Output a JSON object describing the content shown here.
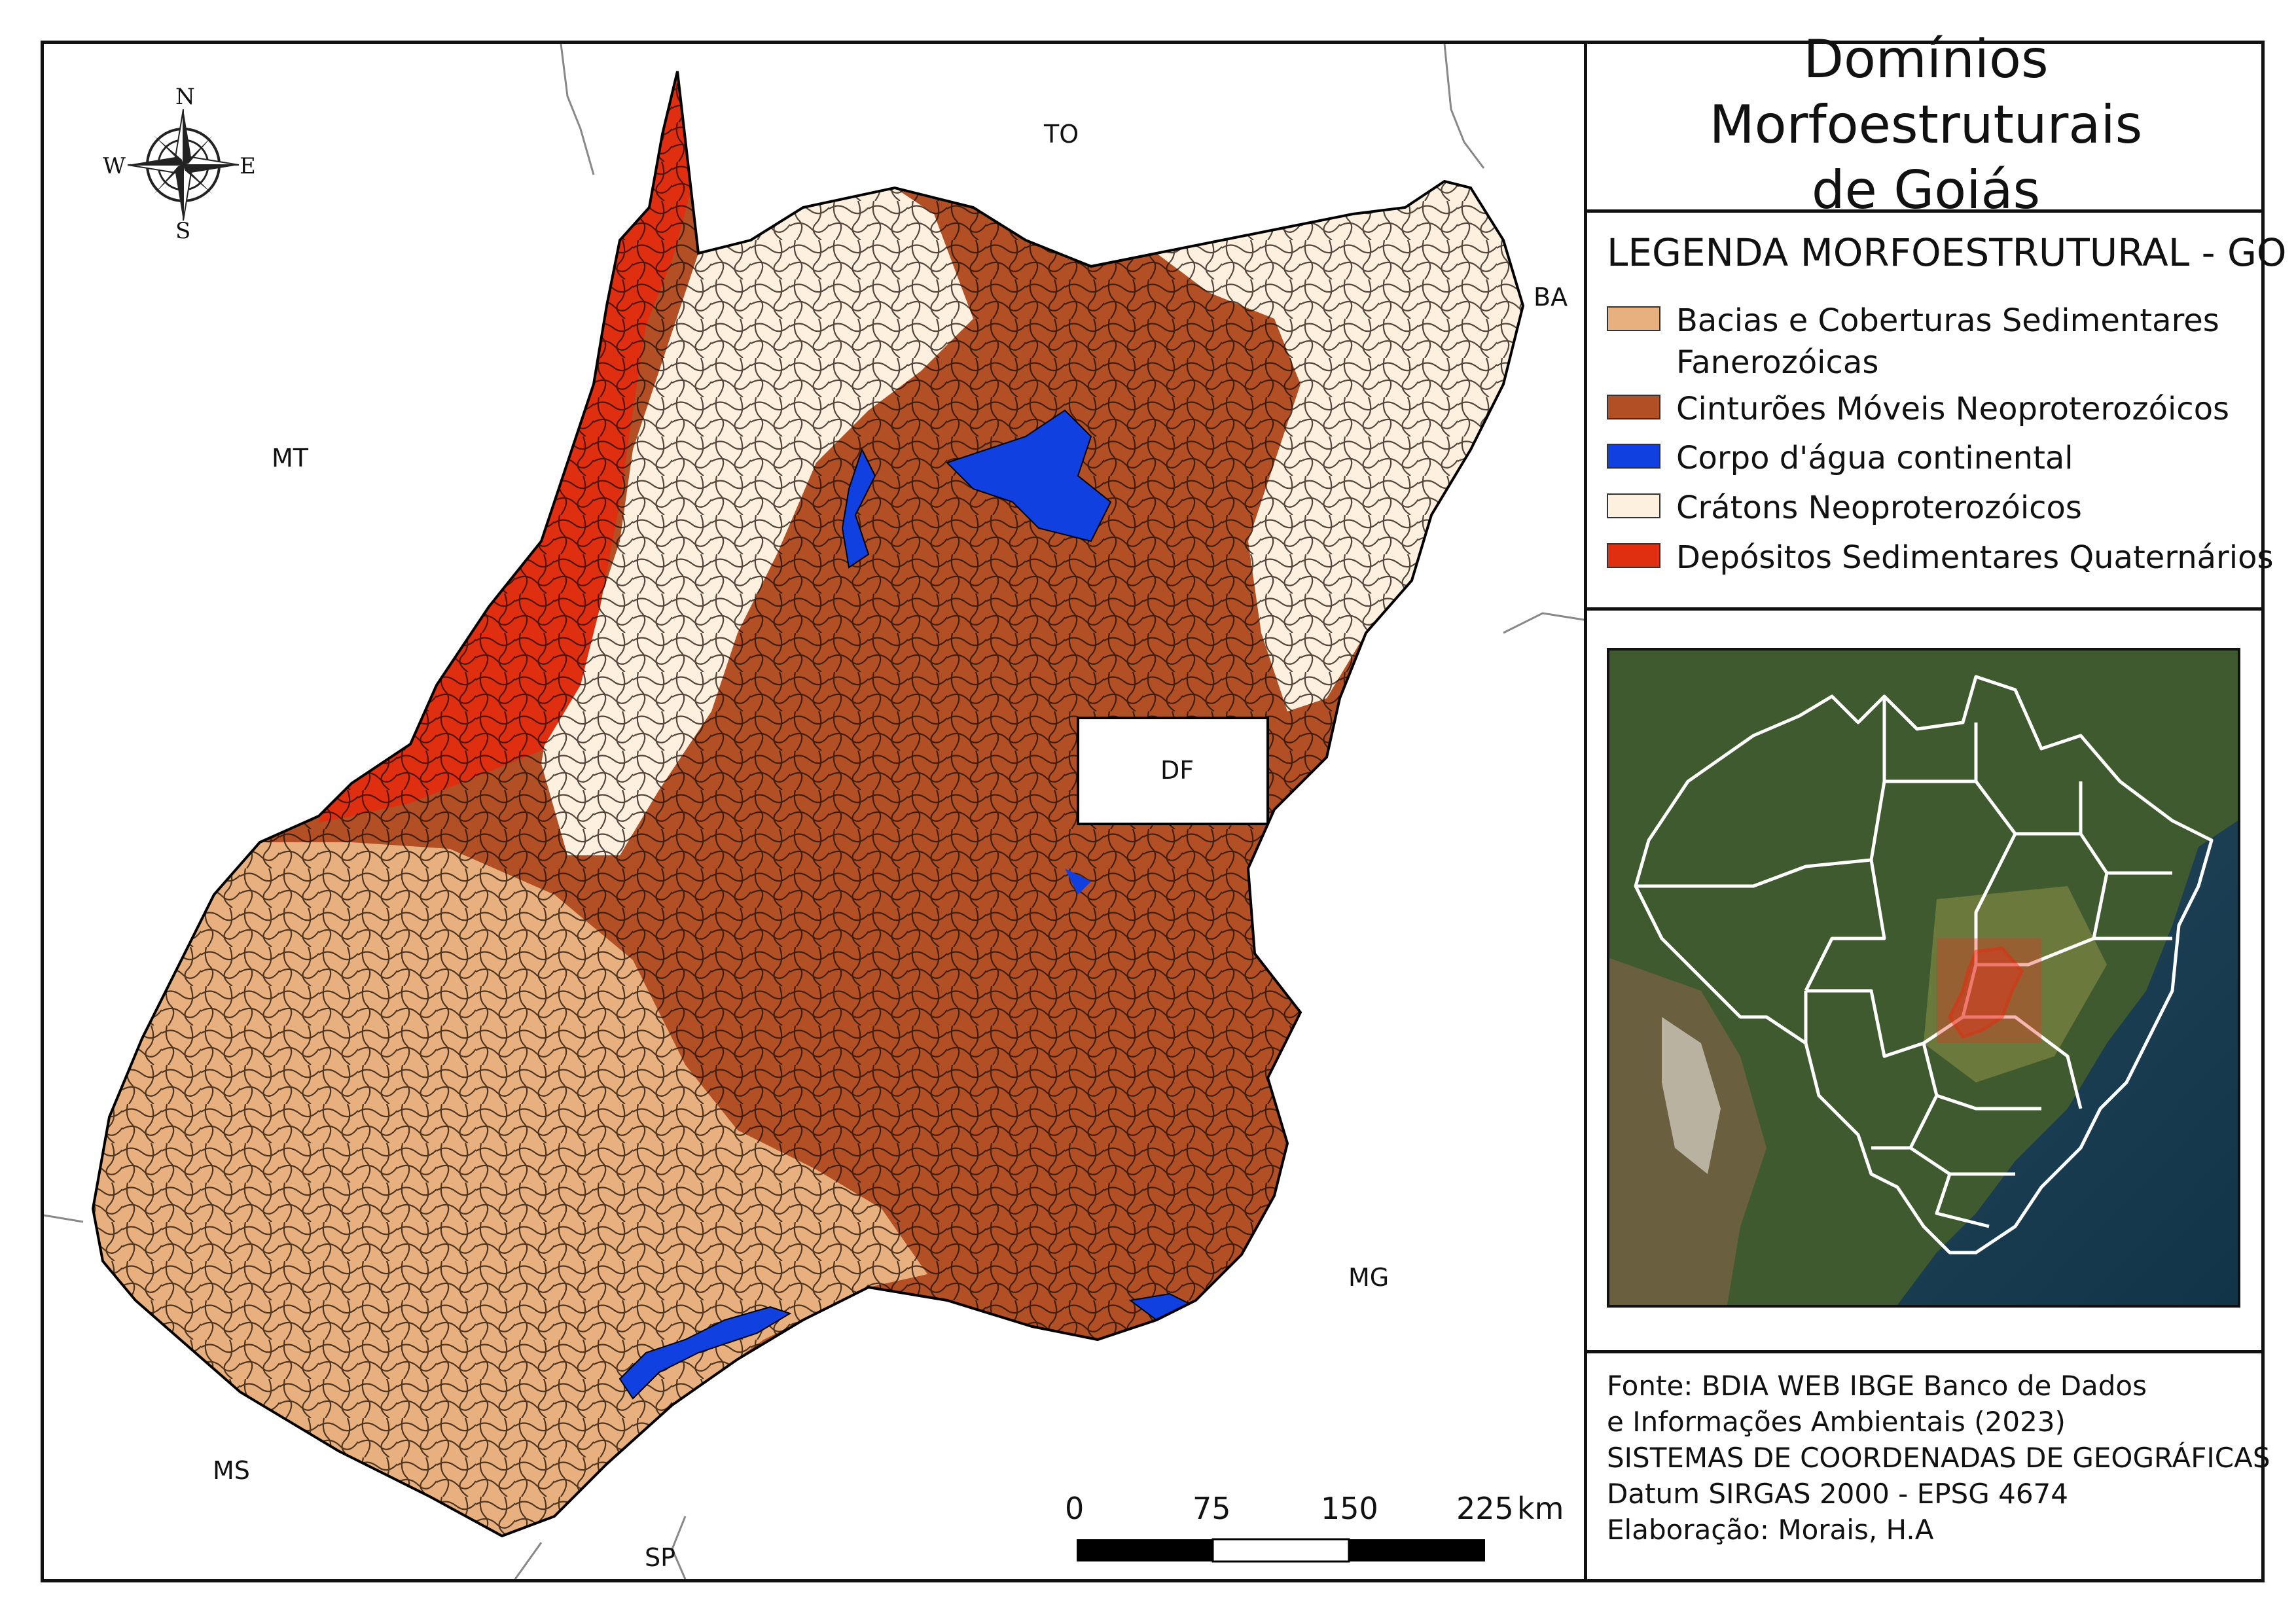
{
  "title_lines": [
    "Domínios Morfoestruturais",
    "de Goiás"
  ],
  "legend": {
    "title": "LEGENDA MORFOESTRUTURAL - GO",
    "items": [
      {
        "label_lines": [
          "Bacias e Coberturas Sedimentares",
          "Fanerozóicas"
        ],
        "color": "#E8B07E"
      },
      {
        "label_lines": [
          "Cinturões Móveis Neoproterozóicos"
        ],
        "color": "#B34F25"
      },
      {
        "label_lines": [
          "Corpo d'água continental"
        ],
        "color": "#1040E0"
      },
      {
        "label_lines": [
          "Crátons Neoproterozóicos"
        ],
        "color": "#FDF0DF"
      },
      {
        "label_lines": [
          "Depósitos Sedimentares Quaternários"
        ],
        "color": "#E02E10"
      }
    ]
  },
  "states": {
    "to": "TO",
    "ba": "BA",
    "mt": "MT",
    "df": "DF",
    "mg": "MG",
    "ms": "MS",
    "sp": "SP"
  },
  "compass": {
    "n": "N",
    "s": "S",
    "e": "E",
    "w": "W"
  },
  "scale": {
    "ticks": [
      "0",
      "75",
      "150",
      "225"
    ],
    "unit": "km"
  },
  "source_lines": [
    "Fonte: BDIA WEB IBGE Banco de Dados",
    "e Informações Ambientais (2023)",
    "SISTEMAS DE COORDENADAS DE GEOGRÁFICAS",
    "Datum SIRGAS 2000 - EPSG 4674",
    "Elaboração: Morais, H.A"
  ]
}
